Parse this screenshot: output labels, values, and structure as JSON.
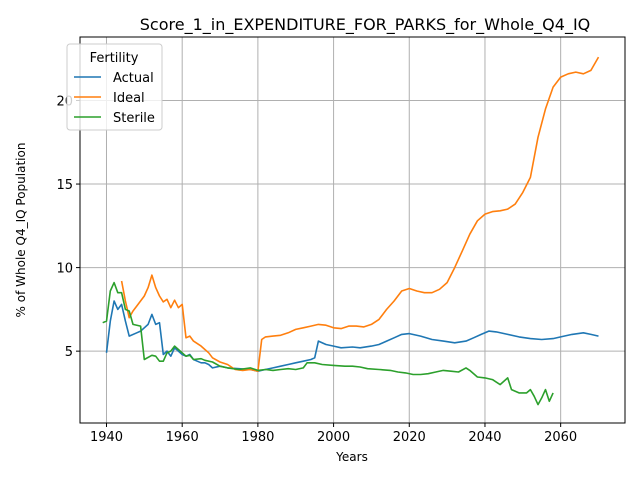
{
  "chart_data": {
    "type": "line",
    "title": "Score_1_in_EXPENDITURE_FOR_PARKS_for_Whole_Q4_IQ",
    "xlabel": "Years",
    "ylabel": "% of Whole Q4_IQ Population",
    "xlim": [
      1933,
      2077
    ],
    "ylim": [
      0.7,
      23.8
    ],
    "xticks": [
      1940,
      1960,
      1980,
      2000,
      2020,
      2040,
      2060
    ],
    "yticks": [
      5,
      10,
      15,
      20
    ],
    "grid": true,
    "legend": {
      "title": "Fertility",
      "position": "top-left"
    },
    "series": [
      {
        "name": "Actual",
        "color": "#1f77b4",
        "points": [
          [
            1940,
            4.9
          ],
          [
            1941,
            6.8
          ],
          [
            1942,
            8.0
          ],
          [
            1943,
            7.5
          ],
          [
            1944,
            7.8
          ],
          [
            1945,
            6.8
          ],
          [
            1946,
            5.9
          ],
          [
            1948,
            6.1
          ],
          [
            1949,
            6.2
          ],
          [
            1950,
            6.4
          ],
          [
            1951,
            6.6
          ],
          [
            1952,
            7.2
          ],
          [
            1953,
            6.6
          ],
          [
            1954,
            6.7
          ],
          [
            1955,
            4.8
          ],
          [
            1956,
            5.0
          ],
          [
            1957,
            4.7
          ],
          [
            1958,
            5.2
          ],
          [
            1959,
            5.0
          ],
          [
            1960,
            4.8
          ],
          [
            1961,
            4.7
          ],
          [
            1962,
            4.8
          ],
          [
            1963,
            4.5
          ],
          [
            1964,
            4.4
          ],
          [
            1965,
            4.3
          ],
          [
            1966,
            4.3
          ],
          [
            1967,
            4.2
          ],
          [
            1968,
            4.0
          ],
          [
            1970,
            4.1
          ],
          [
            1972,
            4.0
          ],
          [
            1975,
            3.95
          ],
          [
            1978,
            3.9
          ],
          [
            1980,
            3.8
          ],
          [
            1982,
            3.9
          ],
          [
            1984,
            4.0
          ],
          [
            1986,
            4.1
          ],
          [
            1988,
            4.2
          ],
          [
            1990,
            4.3
          ],
          [
            1992,
            4.4
          ],
          [
            1994,
            4.5
          ],
          [
            1995,
            4.6
          ],
          [
            1996,
            5.6
          ],
          [
            1998,
            5.4
          ],
          [
            2000,
            5.3
          ],
          [
            2002,
            5.2
          ],
          [
            2005,
            5.25
          ],
          [
            2007,
            5.2
          ],
          [
            2010,
            5.3
          ],
          [
            2012,
            5.4
          ],
          [
            2014,
            5.6
          ],
          [
            2016,
            5.8
          ],
          [
            2018,
            6.0
          ],
          [
            2020,
            6.05
          ],
          [
            2023,
            5.9
          ],
          [
            2026,
            5.7
          ],
          [
            2029,
            5.6
          ],
          [
            2032,
            5.5
          ],
          [
            2035,
            5.6
          ],
          [
            2037,
            5.8
          ],
          [
            2039,
            6.0
          ],
          [
            2041,
            6.2
          ],
          [
            2043,
            6.15
          ],
          [
            2046,
            6.0
          ],
          [
            2049,
            5.85
          ],
          [
            2052,
            5.75
          ],
          [
            2055,
            5.7
          ],
          [
            2058,
            5.75
          ],
          [
            2060,
            5.85
          ],
          [
            2063,
            6.0
          ],
          [
            2066,
            6.1
          ],
          [
            2068,
            6.0
          ],
          [
            2070,
            5.9
          ]
        ]
      },
      {
        "name": "Ideal",
        "color": "#ff7f0e",
        "points": [
          [
            1944,
            9.2
          ],
          [
            1945,
            8.0
          ],
          [
            1946,
            7.0
          ],
          [
            1947,
            7.4
          ],
          [
            1948,
            7.7
          ],
          [
            1950,
            8.3
          ],
          [
            1951,
            8.8
          ],
          [
            1952,
            9.55
          ],
          [
            1953,
            8.8
          ],
          [
            1954,
            8.3
          ],
          [
            1955,
            7.95
          ],
          [
            1956,
            8.1
          ],
          [
            1957,
            7.6
          ],
          [
            1958,
            8.05
          ],
          [
            1959,
            7.6
          ],
          [
            1960,
            7.8
          ],
          [
            1961,
            5.8
          ],
          [
            1962,
            5.9
          ],
          [
            1963,
            5.6
          ],
          [
            1965,
            5.3
          ],
          [
            1966,
            5.1
          ],
          [
            1967,
            4.9
          ],
          [
            1968,
            4.6
          ],
          [
            1970,
            4.35
          ],
          [
            1972,
            4.2
          ],
          [
            1974,
            3.9
          ],
          [
            1976,
            3.85
          ],
          [
            1978,
            3.9
          ],
          [
            1980,
            3.8
          ],
          [
            1981,
            5.7
          ],
          [
            1982,
            5.85
          ],
          [
            1984,
            5.9
          ],
          [
            1986,
            5.95
          ],
          [
            1988,
            6.1
          ],
          [
            1990,
            6.3
          ],
          [
            1992,
            6.4
          ],
          [
            1994,
            6.5
          ],
          [
            1996,
            6.6
          ],
          [
            1998,
            6.55
          ],
          [
            2000,
            6.4
          ],
          [
            2002,
            6.35
          ],
          [
            2004,
            6.5
          ],
          [
            2006,
            6.5
          ],
          [
            2008,
            6.45
          ],
          [
            2010,
            6.6
          ],
          [
            2012,
            6.9
          ],
          [
            2014,
            7.5
          ],
          [
            2016,
            8.0
          ],
          [
            2018,
            8.6
          ],
          [
            2020,
            8.75
          ],
          [
            2022,
            8.6
          ],
          [
            2024,
            8.5
          ],
          [
            2026,
            8.5
          ],
          [
            2028,
            8.7
          ],
          [
            2030,
            9.1
          ],
          [
            2032,
            10.0
          ],
          [
            2034,
            11.0
          ],
          [
            2036,
            12.0
          ],
          [
            2038,
            12.8
          ],
          [
            2040,
            13.2
          ],
          [
            2042,
            13.35
          ],
          [
            2044,
            13.4
          ],
          [
            2046,
            13.5
          ],
          [
            2048,
            13.8
          ],
          [
            2050,
            14.5
          ],
          [
            2052,
            15.4
          ],
          [
            2054,
            17.8
          ],
          [
            2056,
            19.5
          ],
          [
            2058,
            20.8
          ],
          [
            2060,
            21.4
          ],
          [
            2062,
            21.6
          ],
          [
            2064,
            21.7
          ],
          [
            2066,
            21.6
          ],
          [
            2068,
            21.8
          ],
          [
            2070,
            22.6
          ]
        ]
      },
      {
        "name": "Sterile",
        "color": "#2ca02c",
        "points": [
          [
            1939,
            6.7
          ],
          [
            1940,
            6.8
          ],
          [
            1941,
            8.6
          ],
          [
            1942,
            9.1
          ],
          [
            1943,
            8.5
          ],
          [
            1944,
            8.5
          ],
          [
            1945,
            7.5
          ],
          [
            1946,
            7.4
          ],
          [
            1947,
            6.6
          ],
          [
            1949,
            6.5
          ],
          [
            1950,
            4.5
          ],
          [
            1952,
            4.75
          ],
          [
            1953,
            4.7
          ],
          [
            1954,
            4.4
          ],
          [
            1955,
            4.4
          ],
          [
            1956,
            4.9
          ],
          [
            1957,
            5.0
          ],
          [
            1958,
            5.3
          ],
          [
            1960,
            4.9
          ],
          [
            1961,
            4.7
          ],
          [
            1962,
            4.75
          ],
          [
            1963,
            4.5
          ],
          [
            1965,
            4.55
          ],
          [
            1966,
            4.45
          ],
          [
            1968,
            4.35
          ],
          [
            1970,
            4.1
          ],
          [
            1972,
            4.0
          ],
          [
            1975,
            3.9
          ],
          [
            1978,
            4.0
          ],
          [
            1980,
            3.85
          ],
          [
            1982,
            3.9
          ],
          [
            1984,
            3.85
          ],
          [
            1986,
            3.9
          ],
          [
            1988,
            3.95
          ],
          [
            1990,
            3.9
          ],
          [
            1992,
            4.0
          ],
          [
            1993,
            4.3
          ],
          [
            1995,
            4.3
          ],
          [
            1997,
            4.2
          ],
          [
            2000,
            4.15
          ],
          [
            2003,
            4.1
          ],
          [
            2005,
            4.1
          ],
          [
            2007,
            4.05
          ],
          [
            2009,
            3.95
          ],
          [
            2012,
            3.9
          ],
          [
            2015,
            3.85
          ],
          [
            2017,
            3.75
          ],
          [
            2019,
            3.7
          ],
          [
            2021,
            3.6
          ],
          [
            2023,
            3.6
          ],
          [
            2025,
            3.65
          ],
          [
            2027,
            3.75
          ],
          [
            2029,
            3.85
          ],
          [
            2031,
            3.8
          ],
          [
            2033,
            3.75
          ],
          [
            2035,
            4.0
          ],
          [
            2036,
            3.85
          ],
          [
            2038,
            3.45
          ],
          [
            2040,
            3.4
          ],
          [
            2042,
            3.3
          ],
          [
            2044,
            3.0
          ],
          [
            2046,
            3.4
          ],
          [
            2047,
            2.7
          ],
          [
            2049,
            2.5
          ],
          [
            2051,
            2.5
          ],
          [
            2052,
            2.7
          ],
          [
            2053,
            2.3
          ],
          [
            2054,
            1.8
          ],
          [
            2055,
            2.2
          ],
          [
            2056,
            2.7
          ],
          [
            2057,
            2.0
          ],
          [
            2058,
            2.5
          ]
        ]
      }
    ]
  }
}
